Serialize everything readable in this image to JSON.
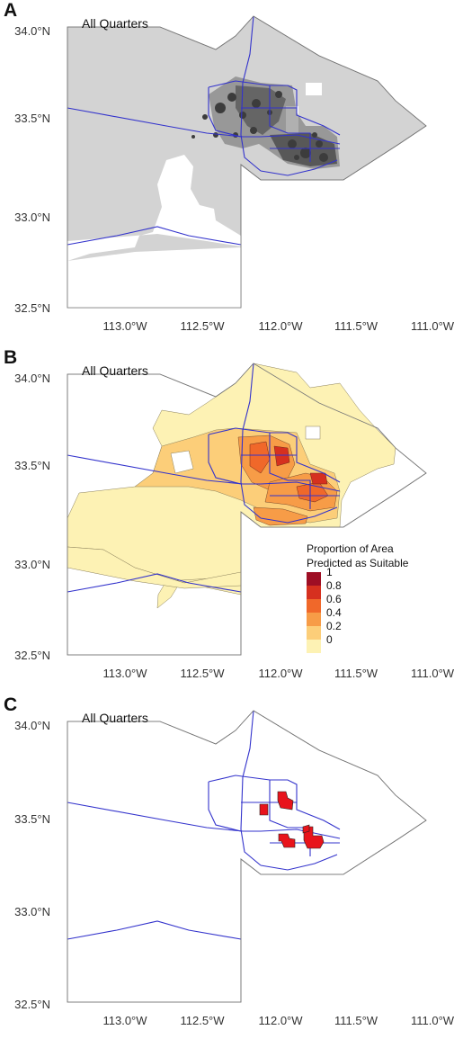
{
  "panels": [
    {
      "letter": "A",
      "title": "All Quarters"
    },
    {
      "letter": "B",
      "title": "All Quarters"
    },
    {
      "letter": "C",
      "title": "All Quarters"
    }
  ],
  "lat_labels": [
    "34.0°N",
    "33.5°N",
    "33.0°N",
    "32.5°N"
  ],
  "lon_labels": [
    "113.0°W",
    "112.5°W",
    "112.0°W",
    "111.5°W",
    "111.0°W"
  ],
  "legend": {
    "title_line1": "Proportion of Area",
    "title_line2": "Predicted as Suitable",
    "items": [
      {
        "label": "1",
        "color": "#9e0e24"
      },
      {
        "label": "0.8",
        "color": "#d6301f"
      },
      {
        "label": "0.6",
        "color": "#f0682a"
      },
      {
        "label": "0.4",
        "color": "#f79c47"
      },
      {
        "label": "0.2",
        "color": "#fcce79"
      },
      {
        "label": "0",
        "color": "#fdf2b4"
      }
    ]
  },
  "colors": {
    "county_fill_a": "#d3d3d3",
    "road": "#3333cc",
    "boundary": "#777777",
    "suitable": "#e8141c"
  }
}
